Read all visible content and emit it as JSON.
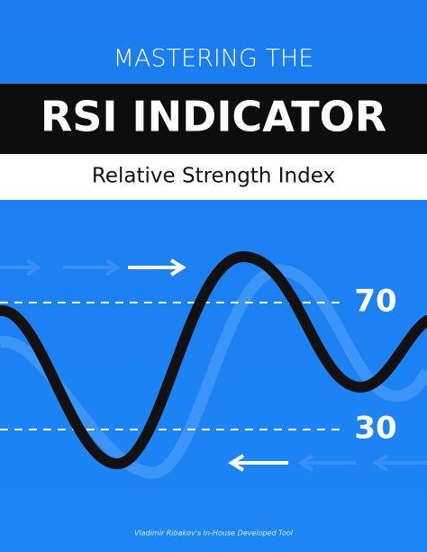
{
  "cover": {
    "kicker": "MASTERING THE",
    "title": "RSI INDICATOR",
    "subtitle": "Relative Strength Index",
    "upper_level": 70,
    "lower_level": 30,
    "footer": "Vladimir Ribakov's In-House Developed Tool"
  }
}
